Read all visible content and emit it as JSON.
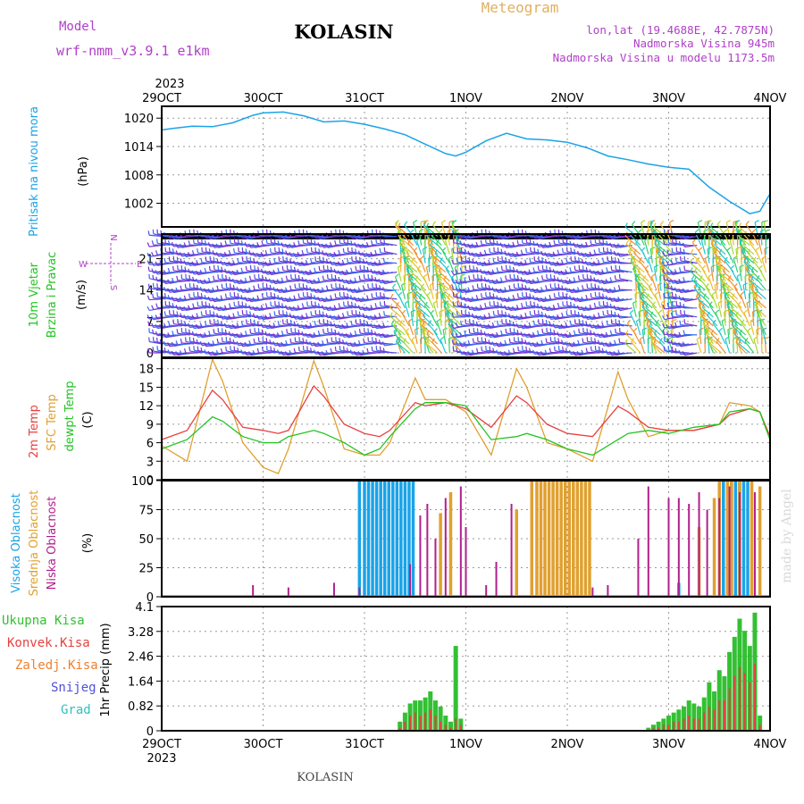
{
  "header": {
    "model_label": "Model",
    "model_name": "wrf-nmm_v3.9.1  e1km",
    "station": "KOLASIN",
    "meteogram": "Meteogram",
    "lonlat": "lon,lat (19.4688E, 42.7875N)",
    "elevation": "Nadmorska Visina 945m",
    "elevation_model": "Nadmorska Visina u modelu 1173.5m",
    "footer_station": "KOLASIN",
    "watermark": "made by Angel"
  },
  "time_axis": {
    "year": "2023",
    "labels": [
      "29OCT",
      "30OCT",
      "31OCT",
      "1NOV",
      "2NOV",
      "3NOV",
      "4NOV"
    ]
  },
  "colors": {
    "pressure": "#1aa3e8",
    "temp2m": "#e84040",
    "sfc_temp": "#e0a030",
    "dewpoint": "#22c422",
    "high_cloud": "#1aa3e8",
    "mid_cloud": "#e0a030",
    "low_cloud": "#b0208c",
    "total_precip": "#33c033",
    "conv_precip": "#e84040",
    "frozen_precip": "#f08030",
    "snow": "#5050d8",
    "graupel": "#30c0c0",
    "label_purple": "#b040c8"
  },
  "chart_data": [
    {
      "type": "line",
      "name": "pressure",
      "ylabel": [
        "Pritisak na nivou mora",
        "(hPa)"
      ],
      "yticks": [
        "1020",
        "1014",
        "1008",
        "1002"
      ],
      "ytick_values": [
        1020,
        1014,
        1008,
        1002
      ],
      "ylim": [
        997,
        1022.5
      ],
      "x_days": [
        0,
        0.1,
        0.3,
        0.5,
        0.7,
        0.9,
        1.0,
        1.2,
        1.4,
        1.6,
        1.8,
        2.0,
        2.2,
        2.4,
        2.6,
        2.8,
        2.9,
        3.0,
        3.2,
        3.4,
        3.6,
        3.8,
        4.0,
        4.2,
        4.4,
        4.6,
        4.8,
        5.0,
        5.2,
        5.4,
        5.6,
        5.8,
        5.9,
        6.0
      ],
      "values": [
        1017.5,
        1017.8,
        1018.3,
        1018.2,
        1019.0,
        1020.6,
        1021.1,
        1021.3,
        1020.5,
        1019.2,
        1019.4,
        1018.7,
        1017.7,
        1016.5,
        1014.5,
        1012.5,
        1012.0,
        1012.8,
        1015.2,
        1016.8,
        1015.6,
        1015.4,
        1014.9,
        1013.7,
        1012.0,
        1011.2,
        1010.3,
        1009.6,
        1009.2,
        1005.4,
        1002.4,
        999.8,
        1000.3,
        1004.0
      ]
    },
    {
      "type": "barbs",
      "name": "wind",
      "ylabel": [
        "10m Vjetar",
        "Brzina i Pravac",
        "(m/s)"
      ],
      "compass": {
        "n": "N",
        "s": "S",
        "e": "E",
        "w": "W"
      },
      "yticks": [
        "21",
        "14",
        "7",
        "0"
      ],
      "ytick_values": [
        21,
        14,
        7,
        0
      ],
      "ylim": [
        -1,
        26.5
      ],
      "barb_levels": [
        0,
        2,
        4,
        6,
        8,
        10,
        12,
        14,
        16,
        18,
        20,
        22,
        24,
        26
      ]
    },
    {
      "type": "line",
      "name": "temperature",
      "ylabel": [
        "2m Temp",
        "SFC Temp",
        "dewpt Temp",
        "(C)"
      ],
      "yticks": [
        "18",
        "15",
        "12",
        "9",
        "6",
        "3",
        "0"
      ],
      "ytick_values": [
        18,
        15,
        12,
        9,
        6,
        3,
        0
      ],
      "ylim": [
        0,
        19.7
      ],
      "x_days": [
        0,
        0.25,
        0.5,
        0.6,
        0.8,
        1.0,
        1.15,
        1.25,
        1.5,
        1.6,
        1.8,
        2.0,
        2.15,
        2.25,
        2.5,
        2.6,
        2.8,
        3.0,
        3.25,
        3.5,
        3.6,
        3.8,
        4.0,
        4.25,
        4.5,
        4.6,
        4.8,
        5.0,
        5.25,
        5.5,
        5.6,
        5.8,
        5.9,
        6.0
      ],
      "series": [
        {
          "key": "temp2m",
          "values": [
            6.5,
            8.0,
            14.5,
            13.0,
            8.5,
            8.0,
            7.5,
            8.0,
            15.2,
            13.5,
            9.0,
            7.5,
            7.0,
            8.0,
            12.5,
            12.0,
            12.5,
            11.5,
            8.5,
            13.6,
            12.5,
            9.0,
            7.5,
            7.0,
            11.9,
            11.0,
            8.5,
            8.0,
            8.0,
            9.0,
            10.5,
            11.5,
            11.0,
            7.0
          ]
        },
        {
          "key": "sfc_temp",
          "values": [
            5.5,
            3.0,
            19.5,
            16.0,
            6.0,
            2.0,
            1.0,
            5.0,
            19.3,
            15.0,
            5.0,
            4.0,
            4.0,
            6.0,
            16.5,
            13.0,
            13.0,
            11.0,
            4.0,
            18.0,
            15.0,
            6.0,
            5.0,
            3.0,
            17.5,
            13.0,
            7.0,
            8.0,
            8.0,
            9.0,
            12.5,
            12.0,
            11.0,
            6.5
          ]
        },
        {
          "key": "dewpoint",
          "values": [
            5.0,
            6.5,
            10.2,
            9.5,
            7.0,
            6.0,
            6.0,
            7.0,
            8.0,
            7.5,
            6.0,
            4.0,
            5.0,
            7.0,
            11.5,
            12.5,
            12.5,
            12.0,
            6.5,
            7.0,
            7.5,
            6.5,
            5.0,
            4.0,
            6.5,
            7.5,
            8.0,
            7.5,
            8.5,
            9.0,
            11.0,
            11.5,
            11.0,
            6.5
          ]
        }
      ]
    },
    {
      "type": "bar",
      "name": "cloud_cover",
      "ylabel": [
        "Visoka Oblacnost",
        "Srednja Oblacnost",
        "Niska Oblacnost",
        "(%)"
      ],
      "yticks": [
        "100",
        "75",
        "50",
        "25",
        "0"
      ],
      "ytick_values": [
        100,
        75,
        50,
        25,
        0
      ],
      "ylim": [
        0,
        100
      ],
      "series": [
        {
          "key": "high_cloud",
          "x_days": [
            1.95,
            2.0,
            2.04,
            2.08,
            2.12,
            2.16,
            2.2,
            2.24,
            2.28,
            2.32,
            2.36,
            2.4,
            2.44,
            2.48,
            3.5,
            4.1,
            5.1,
            5.5,
            5.54,
            5.62,
            5.66,
            5.7,
            5.74,
            5.78
          ],
          "values": [
            100,
            100,
            100,
            100,
            100,
            100,
            100,
            100,
            100,
            100,
            100,
            100,
            100,
            100,
            65,
            10,
            12,
            100,
            100,
            100,
            100,
            100,
            100,
            100
          ]
        },
        {
          "key": "mid_cloud",
          "x_days": [
            2.75,
            2.85,
            3.5,
            3.65,
            3.7,
            3.74,
            3.78,
            3.82,
            3.86,
            3.9,
            3.94,
            3.98,
            4.02,
            4.06,
            4.1,
            4.14,
            4.18,
            4.22,
            5.3,
            5.45,
            5.5,
            5.58,
            5.62,
            5.7,
            5.82,
            5.9
          ],
          "values": [
            72,
            90,
            75,
            100,
            100,
            100,
            100,
            100,
            100,
            100,
            100,
            100,
            100,
            100,
            100,
            100,
            100,
            100,
            60,
            85,
            100,
            100,
            100,
            100,
            100,
            95
          ]
        },
        {
          "key": "low_cloud",
          "x_days": [
            0.9,
            1.25,
            1.7,
            1.95,
            2.45,
            2.55,
            2.62,
            2.7,
            2.8,
            2.95,
            3.0,
            3.2,
            3.3,
            3.45,
            4.25,
            4.4,
            4.7,
            4.8,
            5.0,
            5.1,
            5.2,
            5.3,
            5.38,
            5.5,
            5.6,
            5.7,
            5.85
          ],
          "values": [
            10,
            8,
            12,
            8,
            28,
            70,
            80,
            50,
            85,
            95,
            60,
            10,
            30,
            80,
            8,
            10,
            50,
            95,
            85,
            85,
            80,
            90,
            75,
            85,
            95,
            90,
            90
          ]
        }
      ]
    },
    {
      "type": "bar",
      "name": "precipitation",
      "ylabel": [
        "1hr Precip (mm)"
      ],
      "legend": [
        "Ukupna Kisa",
        "Konvek.Kisa",
        "Zaledj.Kisa",
        "Snijeg",
        "Grad"
      ],
      "yticks": [
        "4.1",
        "3.28",
        "2.46",
        "1.64",
        "0.82",
        "0"
      ],
      "ytick_values": [
        4.1,
        3.28,
        2.46,
        1.64,
        0.82,
        0
      ],
      "ylim": [
        0,
        4.1
      ],
      "x_days": [
        2.35,
        2.4,
        2.45,
        2.5,
        2.55,
        2.6,
        2.65,
        2.7,
        2.75,
        2.8,
        2.85,
        2.9,
        2.95,
        4.8,
        4.85,
        4.9,
        4.95,
        5.0,
        5.05,
        5.1,
        5.15,
        5.2,
        5.25,
        5.3,
        5.35,
        5.4,
        5.45,
        5.5,
        5.55,
        5.6,
        5.65,
        5.7,
        5.75,
        5.8,
        5.85,
        5.9
      ],
      "series": [
        {
          "key": "total_precip",
          "values": [
            0.3,
            0.6,
            0.9,
            1.0,
            1.0,
            1.1,
            1.3,
            1.0,
            0.8,
            0.5,
            0.3,
            2.8,
            0.4,
            0.1,
            0.2,
            0.3,
            0.4,
            0.5,
            0.6,
            0.7,
            0.8,
            1.0,
            0.9,
            0.8,
            1.1,
            1.6,
            1.3,
            2.0,
            1.8,
            2.6,
            3.1,
            3.7,
            3.3,
            2.8,
            3.9,
            0.5
          ]
        },
        {
          "key": "conv_precip",
          "values": [
            0.1,
            0.3,
            0.5,
            0.6,
            0.5,
            0.6,
            0.7,
            0.5,
            0.3,
            0.2,
            0.1,
            0.4,
            0.2,
            0.0,
            0.1,
            0.1,
            0.2,
            0.2,
            0.3,
            0.3,
            0.4,
            0.5,
            0.4,
            0.4,
            0.6,
            0.8,
            0.7,
            1.0,
            1.0,
            1.4,
            1.8,
            2.1,
            1.9,
            1.6,
            2.2,
            0.2
          ]
        }
      ]
    }
  ]
}
